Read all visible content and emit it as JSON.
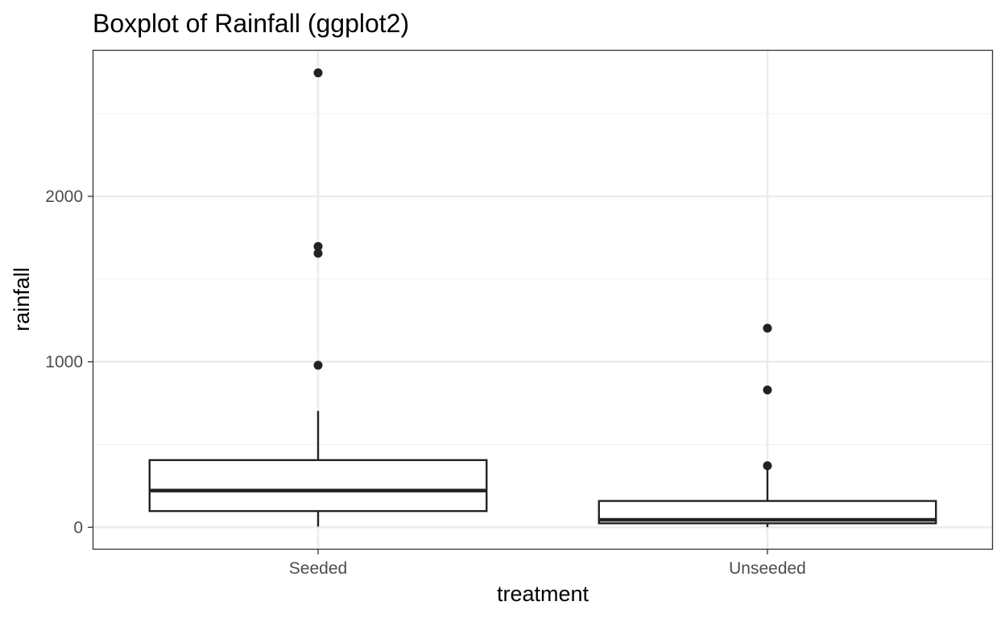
{
  "chart_data": {
    "type": "boxplot",
    "title": "Boxplot of Rainfall (ggplot2)",
    "xlabel": "treatment",
    "ylabel": "rainfall",
    "categories": [
      "Seeded",
      "Unseeded"
    ],
    "ylim": [
      -130,
      2880
    ],
    "yticks": [
      0,
      1000,
      2000
    ],
    "ytick_labels": [
      "0",
      "1000",
      "2000"
    ],
    "grid": true,
    "boxes": [
      {
        "category": "Seeded",
        "whisker_low": 4,
        "q1": 98,
        "median": 222,
        "q3": 406,
        "whisker_high": 703,
        "outliers": [
          979,
          1656,
          1697,
          2746
        ]
      },
      {
        "category": "Unseeded",
        "whisker_low": 1,
        "q1": 24,
        "median": 45,
        "q3": 159,
        "whisker_high": 372,
        "outliers": [
          372,
          830,
          1203
        ]
      }
    ],
    "colors": {
      "box_line": "#222222",
      "point": "#222222",
      "grid_major": "#ebebeb",
      "grid_minor": "#f2f2f2",
      "panel_border": "#333333",
      "tick_text": "#4d4d4d"
    }
  }
}
